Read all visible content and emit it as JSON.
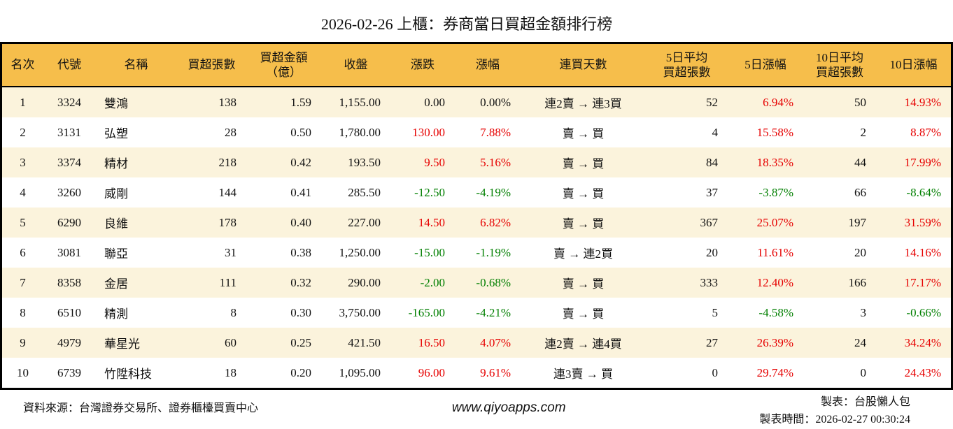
{
  "title": "2026-02-26 上櫃：券商當日買超金額排行榜",
  "colors": {
    "header-bg": "#F6BE4B",
    "row-alt": "#FBF3DC",
    "up-red": "#E60000",
    "down-green": "#007F00"
  },
  "table": {
    "columns": [
      {
        "key": "rank",
        "label": "名次"
      },
      {
        "key": "code",
        "label": "代號"
      },
      {
        "key": "name",
        "label": "名稱"
      },
      {
        "key": "buy_qty",
        "label": "買超張數"
      },
      {
        "key": "buy_amt",
        "label": "買超金額\n（億）"
      },
      {
        "key": "close",
        "label": "收盤"
      },
      {
        "key": "change",
        "label": "漲跌"
      },
      {
        "key": "change_pct",
        "label": "漲幅"
      },
      {
        "key": "streak",
        "label": "連買天數"
      },
      {
        "key": "avg5",
        "label": "5日平均\n買超張數"
      },
      {
        "key": "pct5",
        "label": "5日漲幅"
      },
      {
        "key": "avg10",
        "label": "10日平均\n買超張數"
      },
      {
        "key": "pct10",
        "label": "10日漲幅"
      }
    ],
    "rows": [
      {
        "rank": "1",
        "code": "3324",
        "name": "雙鴻",
        "buy_qty": "138",
        "buy_amt": "1.59",
        "close": "1,155.00",
        "change": {
          "v": "0.00",
          "c": "flat"
        },
        "change_pct": {
          "v": "0.00%",
          "c": "flat"
        },
        "streak": "連2賣 → 連3買",
        "avg5": "52",
        "pct5": {
          "v": "6.94%",
          "c": "up"
        },
        "avg10": "50",
        "pct10": {
          "v": "14.93%",
          "c": "up"
        }
      },
      {
        "rank": "2",
        "code": "3131",
        "name": "弘塑",
        "buy_qty": "28",
        "buy_amt": "0.50",
        "close": "1,780.00",
        "change": {
          "v": "130.00",
          "c": "up"
        },
        "change_pct": {
          "v": "7.88%",
          "c": "up"
        },
        "streak": "賣 → 買",
        "avg5": "4",
        "pct5": {
          "v": "15.58%",
          "c": "up"
        },
        "avg10": "2",
        "pct10": {
          "v": "8.87%",
          "c": "up"
        }
      },
      {
        "rank": "3",
        "code": "3374",
        "name": "精材",
        "buy_qty": "218",
        "buy_amt": "0.42",
        "close": "193.50",
        "change": {
          "v": "9.50",
          "c": "up"
        },
        "change_pct": {
          "v": "5.16%",
          "c": "up"
        },
        "streak": "賣 → 買",
        "avg5": "84",
        "pct5": {
          "v": "18.35%",
          "c": "up"
        },
        "avg10": "44",
        "pct10": {
          "v": "17.99%",
          "c": "up"
        }
      },
      {
        "rank": "4",
        "code": "3260",
        "name": "威剛",
        "buy_qty": "144",
        "buy_amt": "0.41",
        "close": "285.50",
        "change": {
          "v": "-12.50",
          "c": "down"
        },
        "change_pct": {
          "v": "-4.19%",
          "c": "down"
        },
        "streak": "賣 → 買",
        "avg5": "37",
        "pct5": {
          "v": "-3.87%",
          "c": "down"
        },
        "avg10": "66",
        "pct10": {
          "v": "-8.64%",
          "c": "down"
        }
      },
      {
        "rank": "5",
        "code": "6290",
        "name": "良維",
        "buy_qty": "178",
        "buy_amt": "0.40",
        "close": "227.00",
        "change": {
          "v": "14.50",
          "c": "up"
        },
        "change_pct": {
          "v": "6.82%",
          "c": "up"
        },
        "streak": "賣 → 買",
        "avg5": "367",
        "pct5": {
          "v": "25.07%",
          "c": "up"
        },
        "avg10": "197",
        "pct10": {
          "v": "31.59%",
          "c": "up"
        }
      },
      {
        "rank": "6",
        "code": "3081",
        "name": "聯亞",
        "buy_qty": "31",
        "buy_amt": "0.38",
        "close": "1,250.00",
        "change": {
          "v": "-15.00",
          "c": "down"
        },
        "change_pct": {
          "v": "-1.19%",
          "c": "down"
        },
        "streak": "賣 → 連2買",
        "avg5": "20",
        "pct5": {
          "v": "11.61%",
          "c": "up"
        },
        "avg10": "20",
        "pct10": {
          "v": "14.16%",
          "c": "up"
        }
      },
      {
        "rank": "7",
        "code": "8358",
        "name": "金居",
        "buy_qty": "111",
        "buy_amt": "0.32",
        "close": "290.00",
        "change": {
          "v": "-2.00",
          "c": "down"
        },
        "change_pct": {
          "v": "-0.68%",
          "c": "down"
        },
        "streak": "賣 → 買",
        "avg5": "333",
        "pct5": {
          "v": "12.40%",
          "c": "up"
        },
        "avg10": "166",
        "pct10": {
          "v": "17.17%",
          "c": "up"
        }
      },
      {
        "rank": "8",
        "code": "6510",
        "name": "精測",
        "buy_qty": "8",
        "buy_amt": "0.30",
        "close": "3,750.00",
        "change": {
          "v": "-165.00",
          "c": "down"
        },
        "change_pct": {
          "v": "-4.21%",
          "c": "down"
        },
        "streak": "賣 → 買",
        "avg5": "5",
        "pct5": {
          "v": "-4.58%",
          "c": "down"
        },
        "avg10": "3",
        "pct10": {
          "v": "-0.66%",
          "c": "down"
        }
      },
      {
        "rank": "9",
        "code": "4979",
        "name": "華星光",
        "buy_qty": "60",
        "buy_amt": "0.25",
        "close": "421.50",
        "change": {
          "v": "16.50",
          "c": "up"
        },
        "change_pct": {
          "v": "4.07%",
          "c": "up"
        },
        "streak": "連2賣 → 連4買",
        "avg5": "27",
        "pct5": {
          "v": "26.39%",
          "c": "up"
        },
        "avg10": "24",
        "pct10": {
          "v": "34.24%",
          "c": "up"
        }
      },
      {
        "rank": "10",
        "code": "6739",
        "name": "竹陞科技",
        "buy_qty": "18",
        "buy_amt": "0.20",
        "close": "1,095.00",
        "change": {
          "v": "96.00",
          "c": "up"
        },
        "change_pct": {
          "v": "9.61%",
          "c": "up"
        },
        "streak": "連3賣 → 買",
        "avg5": "0",
        "pct5": {
          "v": "29.74%",
          "c": "up"
        },
        "avg10": "0",
        "pct10": {
          "v": "24.43%",
          "c": "up"
        }
      }
    ]
  },
  "footer": {
    "source": "資料來源：台灣證券交易所、證券櫃檯買賣中心",
    "website": "www.qiyoapps.com",
    "maker": "製表：台股懶人包",
    "made_time": "製表時間：2026-02-27 00:30:24"
  }
}
